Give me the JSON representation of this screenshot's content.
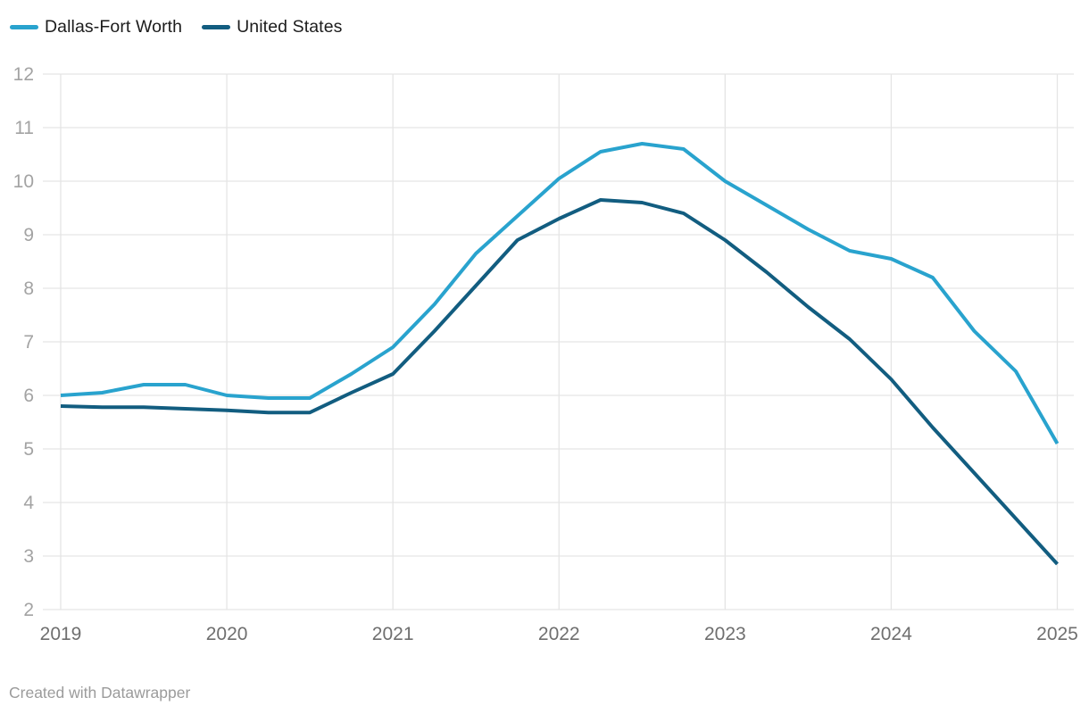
{
  "legend": {
    "items": [
      {
        "label": "Dallas-Fort Worth",
        "color": "#29a3ce"
      },
      {
        "label": "United States",
        "color": "#125d80"
      }
    ]
  },
  "footer": {
    "text": "Created with Datawrapper"
  },
  "chart_data": {
    "type": "line",
    "title": "",
    "xlabel": "",
    "ylabel": "",
    "xlim": [
      2019,
      2025
    ],
    "ylim": [
      2,
      12
    ],
    "grid": true,
    "legend_position": "top-left",
    "x_tick_labels": [
      "2019",
      "2020",
      "2021",
      "2022",
      "2023",
      "2024",
      "2025"
    ],
    "y_tick_labels": [
      "2",
      "3",
      "4",
      "5",
      "6",
      "7",
      "8",
      "9",
      "10",
      "11",
      "12"
    ],
    "y_ticks": [
      2,
      3,
      4,
      5,
      6,
      7,
      8,
      9,
      10,
      11,
      12
    ],
    "x": [
      2019.0,
      2019.25,
      2019.5,
      2019.75,
      2020.0,
      2020.25,
      2020.5,
      2020.75,
      2021.0,
      2021.25,
      2021.5,
      2021.75,
      2022.0,
      2022.25,
      2022.5,
      2022.75,
      2023.0,
      2023.25,
      2023.5,
      2023.75,
      2024.0,
      2024.25,
      2024.5,
      2024.75,
      2025.0
    ],
    "series": [
      {
        "name": "Dallas-Fort Worth",
        "color": "#29a3ce",
        "values": [
          6.0,
          6.05,
          6.2,
          6.2,
          6.0,
          5.95,
          5.95,
          6.4,
          6.9,
          7.7,
          8.65,
          9.35,
          10.05,
          10.55,
          10.7,
          10.6,
          10.0,
          9.55,
          9.1,
          8.7,
          8.55,
          8.2,
          7.2,
          6.45,
          5.1
        ]
      },
      {
        "name": "United States",
        "color": "#125d80",
        "values": [
          5.8,
          5.78,
          5.78,
          5.75,
          5.72,
          5.68,
          5.68,
          6.05,
          6.4,
          7.2,
          8.05,
          8.9,
          9.3,
          9.65,
          9.6,
          9.4,
          8.9,
          8.3,
          7.65,
          7.05,
          6.3,
          5.4,
          4.55,
          3.7,
          2.85
        ]
      }
    ]
  }
}
